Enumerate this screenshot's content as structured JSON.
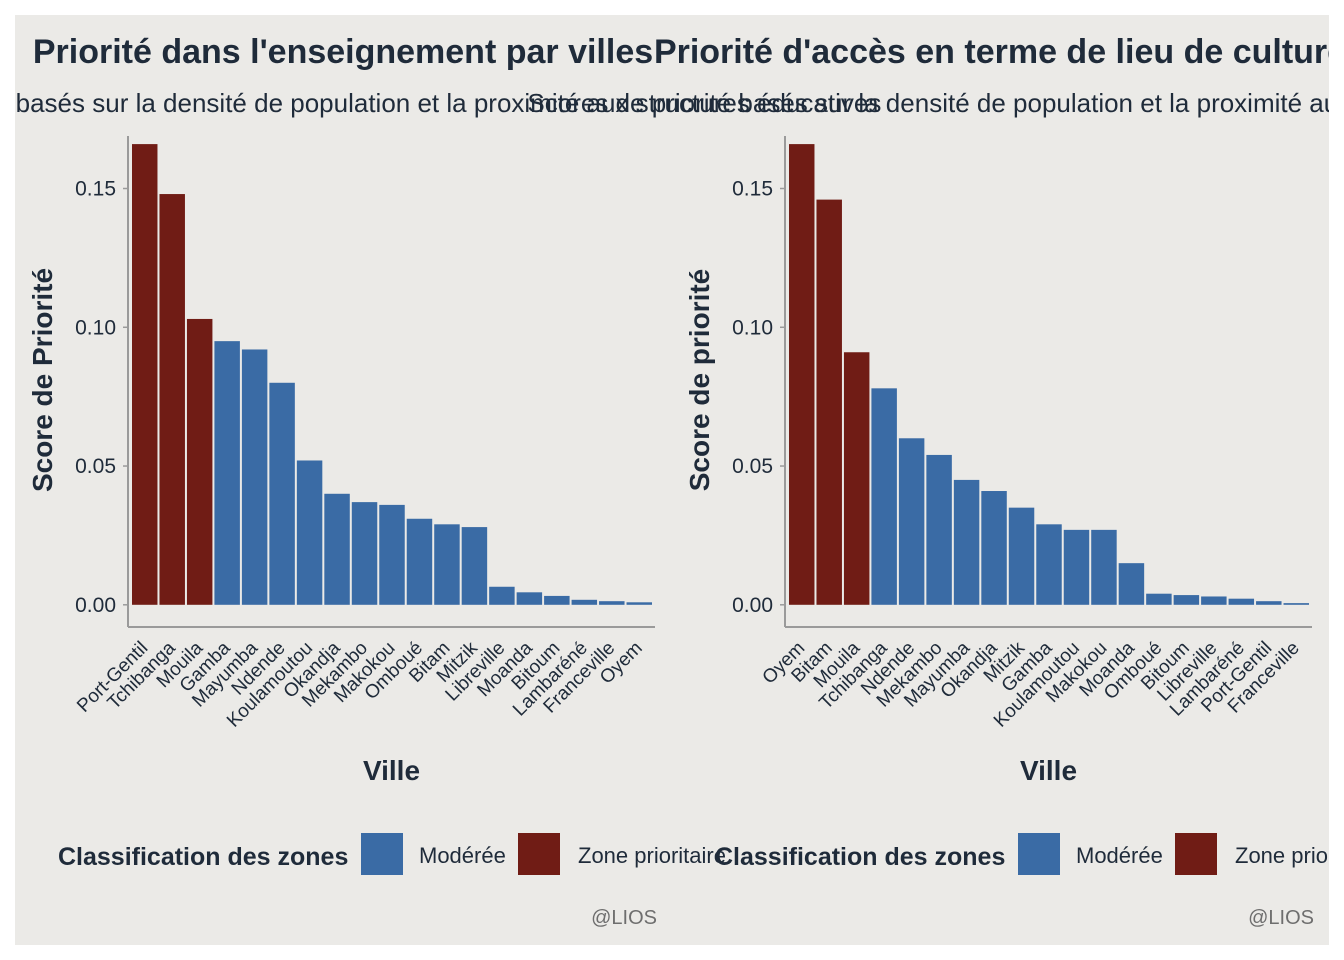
{
  "chart_data": [
    {
      "type": "bar",
      "title": "Priorité dans l'enseignement par villes",
      "subtitle": "Scores de priorité basés sur la densité de population et la proximité aux structures éducatives",
      "xlabel": "Ville",
      "ylabel": "Score de Priorité",
      "ylim": [
        -0.008,
        0.17
      ],
      "yticks": [
        0.0,
        0.05,
        0.1,
        0.15
      ],
      "ytick_labels": [
        "0.00",
        "0.05",
        "0.10",
        "0.15"
      ],
      "categories": [
        "Port-Gentil",
        "Tchibanga",
        "Mouila",
        "Gamba",
        "Mayumba",
        "Ndende",
        "Koulamoutou",
        "Okandja",
        "Mekambo",
        "Makokou",
        "Omboué",
        "Bitam",
        "Mitzik",
        "Libreville",
        "Moanda",
        "Bitoum",
        "Lambaréné",
        "Franceville",
        "Oyem"
      ],
      "values": [
        0.166,
        0.148,
        0.103,
        0.095,
        0.092,
        0.08,
        0.052,
        0.04,
        0.037,
        0.036,
        0.031,
        0.029,
        0.028,
        0.0065,
        0.0045,
        0.0032,
        0.0018,
        0.0013,
        0.0009
      ],
      "classes": [
        "Zone prioritaire",
        "Zone prioritaire",
        "Zone prioritaire",
        "Modérée",
        "Modérée",
        "Modérée",
        "Modérée",
        "Modérée",
        "Modérée",
        "Modérée",
        "Modérée",
        "Modérée",
        "Modérée",
        "Modérée",
        "Modérée",
        "Modérée",
        "Modérée",
        "Modérée",
        "Modérée"
      ],
      "legend": {
        "title": "Classification des zones",
        "placement": "bottom",
        "items": [
          {
            "label": "Modérée",
            "color": "#3A6BA5"
          },
          {
            "label": "Zone prioritaire",
            "color": "#701C15"
          }
        ]
      },
      "caption": "@LIOS",
      "grid": false
    },
    {
      "type": "bar",
      "title": "Priorité d'accès en terme de lieu de culture",
      "subtitle": "Scores de priorité basés sur la densité de population et la proximité aux structures",
      "xlabel": "Ville",
      "ylabel": "Score de priorité",
      "ylim": [
        -0.008,
        0.17
      ],
      "yticks": [
        0.0,
        0.05,
        0.1,
        0.15
      ],
      "ytick_labels": [
        "0.00",
        "0.05",
        "0.10",
        "0.15"
      ],
      "categories": [
        "Oyem",
        "Bitam",
        "Mouila",
        "Tchibanga",
        "Ndende",
        "Mekambo",
        "Mayumba",
        "Okandja",
        "Mitzik",
        "Gamba",
        "Koulamoutou",
        "Makokou",
        "Moanda",
        "Omboué",
        "Bitoum",
        "Libreville",
        "Lambaréné",
        "Port-Gentil",
        "Franceville"
      ],
      "values": [
        0.166,
        0.146,
        0.091,
        0.078,
        0.06,
        0.054,
        0.045,
        0.041,
        0.035,
        0.029,
        0.027,
        0.027,
        0.015,
        0.004,
        0.0035,
        0.003,
        0.0022,
        0.0013,
        0.0006
      ],
      "classes": [
        "Zone prioritaire",
        "Zone prioritaire",
        "Zone prioritaire",
        "Modérée",
        "Modérée",
        "Modérée",
        "Modérée",
        "Modérée",
        "Modérée",
        "Modérée",
        "Modérée",
        "Modérée",
        "Modérée",
        "Modérée",
        "Modérée",
        "Modérée",
        "Modérée",
        "Modérée",
        "Modérée"
      ],
      "legend": {
        "title": "Classification des zones",
        "placement": "bottom",
        "items": [
          {
            "label": "Modérée",
            "color": "#3A6BA5"
          },
          {
            "label": "Zone prioritaire",
            "color": "#701C15"
          }
        ]
      },
      "caption": "@LIOS",
      "grid": false
    }
  ],
  "colors": {
    "background": "#EBEAE7",
    "axis": "#9A9A9A",
    "text": "#1F2B3A",
    "caption": "#6E6E6E"
  }
}
